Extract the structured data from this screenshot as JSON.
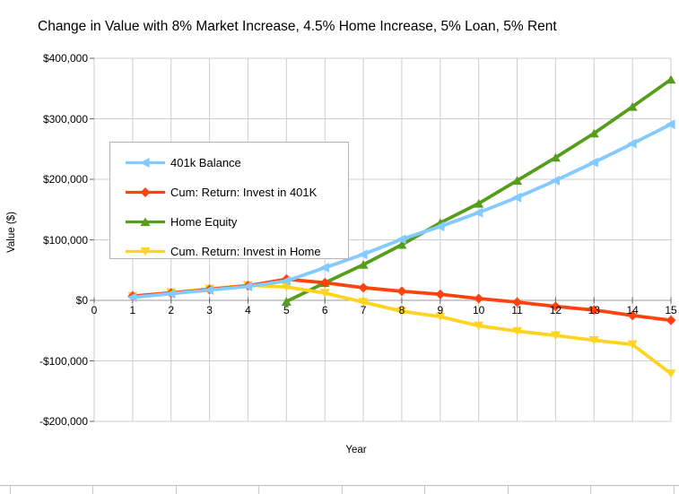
{
  "chart_data": {
    "type": "line",
    "title": "Change in Value with 8% Market Increase, 4.5% Home Increase, 5% Loan, 5% Rent",
    "xlabel": "Year",
    "ylabel": "Value ($)",
    "xlim": [
      0,
      15
    ],
    "ylim": [
      -200000,
      400000
    ],
    "grid": true,
    "legend_position": "upper-left-inside",
    "x_ticks": [
      0,
      1,
      2,
      3,
      4,
      5,
      6,
      7,
      8,
      9,
      10,
      11,
      12,
      13,
      14,
      15
    ],
    "y_ticks": [
      {
        "value": 400000,
        "label": "$400,000"
      },
      {
        "value": 300000,
        "label": "$300,000"
      },
      {
        "value": 200000,
        "label": "$200,000"
      },
      {
        "value": 100000,
        "label": "$100,000"
      },
      {
        "value": 0,
        "label": "$0"
      },
      {
        "value": -100000,
        "label": "-$100,000"
      },
      {
        "value": -200000,
        "label": "-$200,000"
      }
    ],
    "x": [
      1,
      2,
      3,
      4,
      5,
      6,
      7,
      8,
      9,
      10,
      11,
      12,
      13,
      14,
      15
    ],
    "series": [
      {
        "name": "401k Balance",
        "color": "#83CAFF",
        "marker": "triangle-left",
        "values": [
          5000,
          11000,
          17000,
          23000,
          32000,
          54000,
          76000,
          101000,
          122000,
          145000,
          170000,
          198000,
          228000,
          259000,
          291000
        ]
      },
      {
        "name": "Cum: Return: Invest in 401K",
        "color": "#FF420E",
        "marker": "diamond",
        "values": [
          7000,
          12000,
          18000,
          24000,
          35000,
          29000,
          21000,
          15000,
          10000,
          3000,
          -3000,
          -10000,
          -16000,
          -25000,
          -33000
        ]
      },
      {
        "name": "Home Equity",
        "color": "#579D1C",
        "marker": "triangle-up",
        "values": [
          null,
          null,
          null,
          null,
          -2000,
          29000,
          59000,
          92000,
          128000,
          160000,
          198000,
          236000,
          276000,
          320000,
          365000
        ]
      },
      {
        "name": "Cum. Return: Invest in Home",
        "color": "#FFD320",
        "marker": "triangle-down",
        "values": [
          7000,
          13000,
          19000,
          25000,
          22000,
          12000,
          -3000,
          -18000,
          -27000,
          -42000,
          -51000,
          -58000,
          -66000,
          -73000,
          -121000
        ]
      }
    ]
  }
}
